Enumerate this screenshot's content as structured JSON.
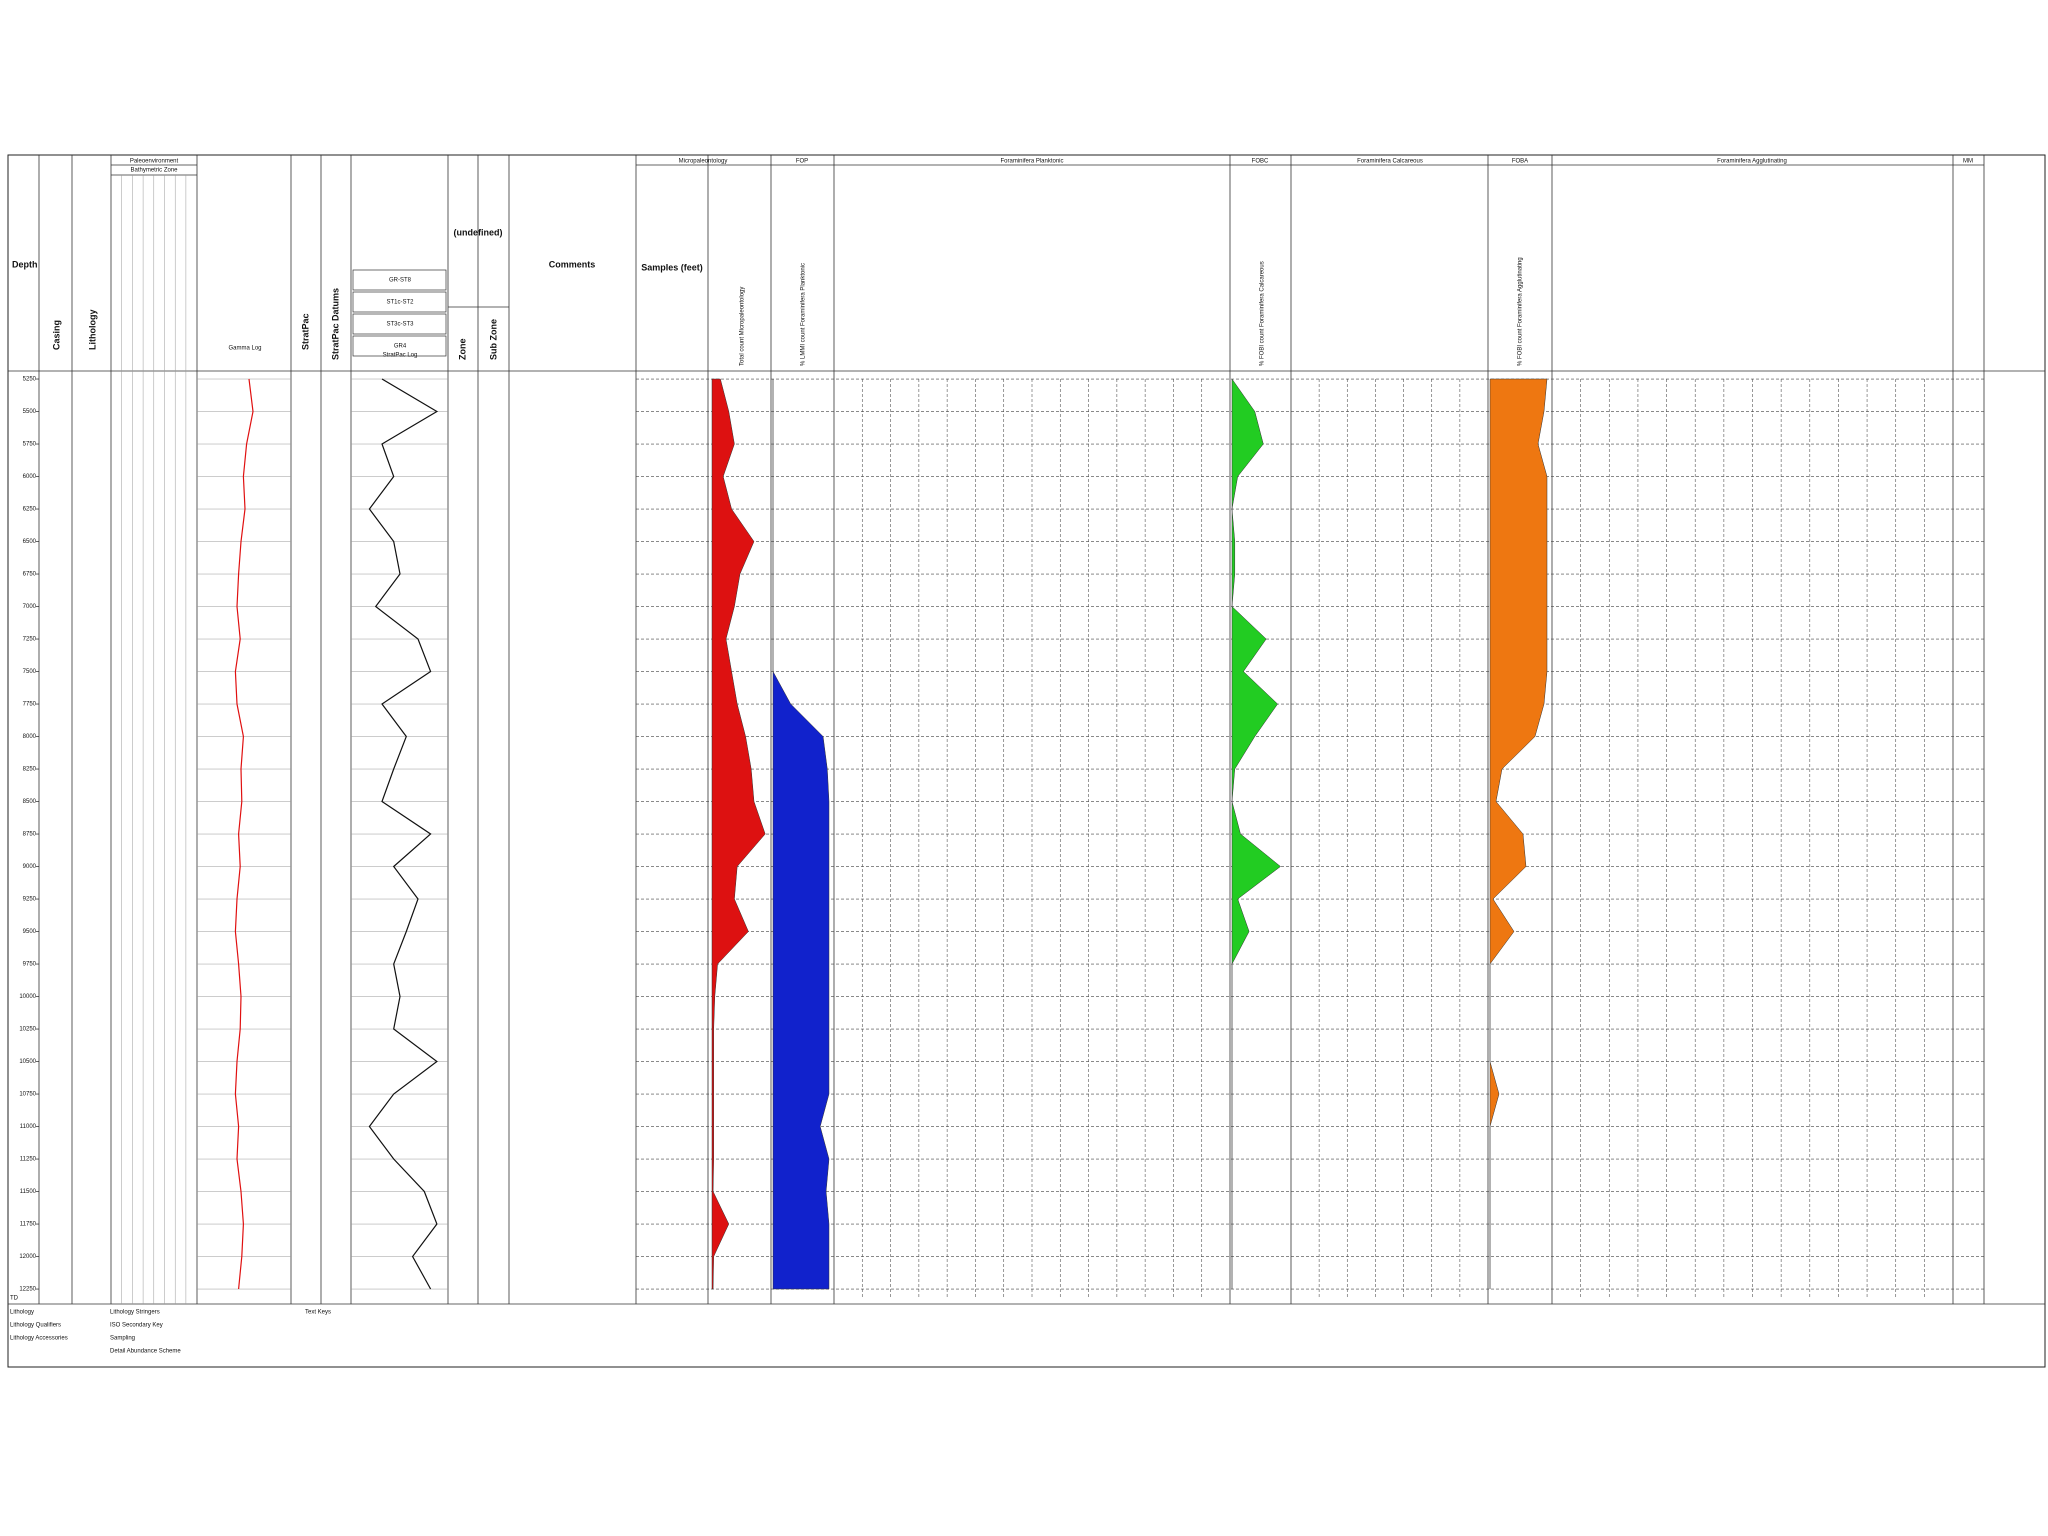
{
  "chart_data": {
    "type": "well-log",
    "depth_label": "Depth",
    "ylim": [
      5196,
      12365
    ],
    "yticks": [
      5250,
      5500,
      5750,
      6000,
      6250,
      6500,
      6750,
      7000,
      7250,
      7500,
      7750,
      8000,
      8250,
      8500,
      8750,
      9000,
      9250,
      9500,
      9750,
      10000,
      10250,
      10500,
      10750,
      11000,
      11250,
      11500,
      11750,
      12000,
      12250
    ],
    "td_label": "TD",
    "grid": true,
    "headers": {
      "casing": "Casing",
      "lithology": "Lithology",
      "paleoenvironment": "Paleoenvironment",
      "bathymetric_zone": "Bathymetric Zone",
      "stratpac": "StratPac",
      "stratpac_datums": "StratPac Datums",
      "datums": [
        "GR-ST8",
        "ST1c-ST2",
        "ST3c-ST3",
        "GR4"
      ],
      "undefined": "(undefined)",
      "zone": "Zone",
      "sub_zone": "Sub Zone",
      "comments": "Comments",
      "micropaleontology": "Micropaleontology",
      "samples": "Samples (feet)",
      "fop": "FOP",
      "planktonic": "Foraminifera Planktonic",
      "fobc": "FOBC",
      "calcareous": "Foraminifera Calcareous",
      "foba": "FOBA",
      "agglutinating": "Foraminifera Agglutinating",
      "mm": "MM"
    },
    "legend": [
      "Lithology",
      "Lithology Qualifiers",
      "Lithology Accessories",
      "Lithology Stringers",
      "ISO Secondary Key",
      "Sampling",
      "Detail Abundance Scheme",
      "Text Keys"
    ],
    "depths": [
      5250,
      5500,
      5750,
      6000,
      6250,
      6500,
      6750,
      7000,
      7250,
      7500,
      7750,
      8000,
      8250,
      8500,
      8750,
      9000,
      9250,
      9500,
      9750,
      10000,
      10250,
      10500,
      10750,
      11000,
      11250,
      11500,
      11750,
      12000,
      12250
    ],
    "series": [
      {
        "name": "Gamma Log",
        "color": "#e01010",
        "style": "line",
        "xlim": [
          0,
          100
        ],
        "values": [
          55,
          60,
          52,
          48,
          50,
          45,
          42,
          40,
          44,
          38,
          40,
          48,
          45,
          46,
          42,
          44,
          40,
          38,
          42,
          45,
          44,
          40,
          38,
          42,
          40,
          45,
          48,
          46,
          42
        ]
      },
      {
        "name": "StratPac Log",
        "color": "#111111",
        "style": "line",
        "xlim": [
          0,
          100
        ],
        "values": [
          30,
          91,
          30,
          43,
          16,
          43,
          50,
          23,
          70,
          84,
          30,
          57,
          43,
          30,
          84,
          43,
          70,
          57,
          43,
          50,
          43,
          91,
          43,
          16,
          43,
          77,
          91,
          64,
          84
        ]
      },
      {
        "name": "Total count Micropaleontology",
        "color": "#dd1111",
        "style": "area",
        "xlim": [
          0,
          100
        ],
        "values": [
          15,
          30,
          40,
          20,
          35,
          75,
          50,
          40,
          25,
          35,
          45,
          60,
          70,
          75,
          95,
          45,
          40,
          65,
          10,
          5,
          3,
          3,
          3,
          3,
          3,
          2,
          30,
          3,
          2
        ]
      },
      {
        "name": "% LMMI count Foraminifera Planktonic",
        "color": "#1122cc",
        "style": "area",
        "xlim": [
          0,
          100
        ],
        "values": [
          0,
          0,
          0,
          0,
          0,
          0,
          0,
          0,
          0,
          0,
          30,
          85,
          92,
          95,
          95,
          95,
          95,
          95,
          95,
          95,
          95,
          95,
          95,
          80,
          95,
          90,
          95,
          95,
          95
        ]
      },
      {
        "name": "% FOBI count Foraminifera Calcareous",
        "color": "#22cc22",
        "style": "area",
        "xlim": [
          0,
          100
        ],
        "values": [
          0,
          40,
          55,
          10,
          0,
          5,
          5,
          0,
          60,
          20,
          80,
          40,
          5,
          0,
          15,
          85,
          10,
          30,
          0,
          0,
          0,
          0,
          0,
          0,
          0,
          0,
          0,
          0,
          0
        ]
      },
      {
        "name": "% FOBI count Foraminifera Agglutinating",
        "color": "#ee7711",
        "style": "area",
        "xlim": [
          0,
          100
        ],
        "values": [
          95,
          90,
          80,
          95,
          95,
          95,
          95,
          95,
          95,
          95,
          90,
          75,
          20,
          10,
          55,
          60,
          5,
          40,
          0,
          0,
          0,
          0,
          15,
          0,
          0,
          0,
          0,
          0,
          0
        ]
      }
    ]
  }
}
